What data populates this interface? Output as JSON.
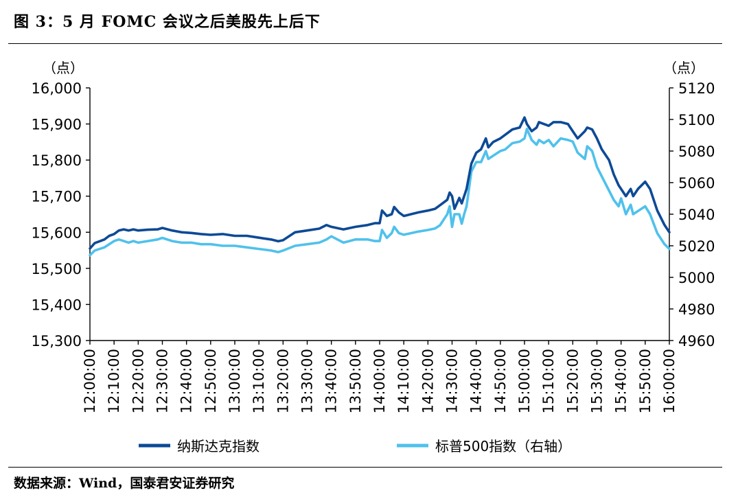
{
  "figure": {
    "title": "图 3：5 月 FOMC 会议之后美股先上后下",
    "source": "数据来源：Wind，国泰君安证券研究"
  },
  "colors": {
    "nasdaq": "#0d4a96",
    "sp500": "#4fc1ec",
    "axis": "#000000"
  },
  "chart_data": {
    "type": "line",
    "left_unit": "（点）",
    "right_unit": "（点）",
    "left_axis": {
      "min": 15300,
      "max": 16000,
      "step": 100,
      "tick_labels": [
        "15,300",
        "15,400",
        "15,500",
        "15,600",
        "15,700",
        "15,800",
        "15,900",
        "16,000"
      ]
    },
    "right_axis": {
      "min": 4960,
      "max": 5120,
      "step": 20,
      "tick_labels": [
        "4960",
        "4980",
        "5000",
        "5020",
        "5040",
        "5060",
        "5080",
        "5100",
        "5120"
      ]
    },
    "x_ticks": [
      "12:00:00",
      "12:10:00",
      "12:20:00",
      "12:30:00",
      "12:40:00",
      "12:50:00",
      "13:00:00",
      "13:10:00",
      "13:20:00",
      "13:30:00",
      "13:40:00",
      "13:50:00",
      "14:00:00",
      "14:10:00",
      "14:20:00",
      "14:30:00",
      "14:40:00",
      "14:50:00",
      "15:00:00",
      "15:10:00",
      "15:20:00",
      "15:30:00",
      "15:40:00",
      "15:50:00",
      "16:00:00"
    ],
    "grid": false,
    "legend_position": "bottom",
    "series": [
      {
        "name": "纳斯达克指数",
        "axis": "left",
        "x": [
          "12:00",
          "12:02",
          "12:04",
          "12:06",
          "12:08",
          "12:10",
          "12:12",
          "12:14",
          "12:16",
          "12:18",
          "12:20",
          "12:24",
          "12:28",
          "12:30",
          "12:34",
          "12:38",
          "12:42",
          "12:46",
          "12:50",
          "12:55",
          "13:00",
          "13:05",
          "13:10",
          "13:15",
          "13:18",
          "13:20",
          "13:25",
          "13:30",
          "13:35",
          "13:38",
          "13:40",
          "13:45",
          "13:50",
          "13:55",
          "13:58",
          "14:00",
          "14:01",
          "14:03",
          "14:05",
          "14:06",
          "14:08",
          "14:10",
          "14:13",
          "14:16",
          "14:20",
          "14:23",
          "14:25",
          "14:28",
          "14:29",
          "14:30",
          "14:31",
          "14:33",
          "14:34",
          "14:35",
          "14:36",
          "14:38",
          "14:40",
          "14:42",
          "14:44",
          "14:45",
          "14:47",
          "14:50",
          "14:52",
          "14:55",
          "14:58",
          "15:00",
          "15:01",
          "15:03",
          "15:05",
          "15:06",
          "15:08",
          "15:10",
          "15:12",
          "15:15",
          "15:18",
          "15:20",
          "15:22",
          "15:25",
          "15:26",
          "15:28",
          "15:30",
          "15:32",
          "15:35",
          "15:37",
          "15:39",
          "15:40",
          "15:42",
          "15:44",
          "15:45",
          "15:47",
          "15:50",
          "15:52",
          "15:55",
          "15:58",
          "16:00"
        ],
        "values": [
          15555,
          15570,
          15575,
          15580,
          15590,
          15595,
          15605,
          15608,
          15605,
          15608,
          15605,
          15607,
          15608,
          15612,
          15605,
          15600,
          15598,
          15595,
          15593,
          15595,
          15590,
          15590,
          15585,
          15580,
          15575,
          15578,
          15600,
          15605,
          15610,
          15620,
          15615,
          15608,
          15615,
          15620,
          15625,
          15625,
          15660,
          15645,
          15650,
          15670,
          15655,
          15645,
          15650,
          15655,
          15660,
          15665,
          15675,
          15690,
          15710,
          15700,
          15665,
          15695,
          15680,
          15700,
          15720,
          15790,
          15820,
          15830,
          15860,
          15835,
          15850,
          15860,
          15870,
          15885,
          15890,
          15918,
          15900,
          15880,
          15890,
          15905,
          15900,
          15895,
          15905,
          15905,
          15900,
          15880,
          15860,
          15880,
          15890,
          15885,
          15860,
          15830,
          15800,
          15760,
          15730,
          15720,
          15700,
          15720,
          15700,
          15720,
          15740,
          15720,
          15660,
          15620,
          15600
        ]
      },
      {
        "name": "标普500指数（右轴）",
        "axis": "right",
        "x": [
          "12:00",
          "12:02",
          "12:04",
          "12:06",
          "12:08",
          "12:10",
          "12:12",
          "12:14",
          "12:16",
          "12:18",
          "12:20",
          "12:24",
          "12:28",
          "12:30",
          "12:34",
          "12:38",
          "12:42",
          "12:46",
          "12:50",
          "12:55",
          "13:00",
          "13:05",
          "13:10",
          "13:15",
          "13:18",
          "13:20",
          "13:25",
          "13:30",
          "13:35",
          "13:38",
          "13:40",
          "13:45",
          "13:50",
          "13:55",
          "13:58",
          "14:00",
          "14:01",
          "14:03",
          "14:05",
          "14:06",
          "14:08",
          "14:10",
          "14:13",
          "14:16",
          "14:20",
          "14:23",
          "14:25",
          "14:28",
          "14:29",
          "14:30",
          "14:31",
          "14:33",
          "14:34",
          "14:35",
          "14:36",
          "14:38",
          "14:40",
          "14:42",
          "14:44",
          "14:45",
          "14:47",
          "14:50",
          "14:52",
          "14:55",
          "14:58",
          "15:00",
          "15:01",
          "15:03",
          "15:05",
          "15:06",
          "15:08",
          "15:10",
          "15:12",
          "15:15",
          "15:18",
          "15:20",
          "15:22",
          "15:25",
          "15:26",
          "15:28",
          "15:30",
          "15:32",
          "15:35",
          "15:37",
          "15:39",
          "15:40",
          "15:42",
          "15:44",
          "15:45",
          "15:47",
          "15:50",
          "15:52",
          "15:55",
          "15:58",
          "16:00"
        ],
        "values": [
          5014,
          5017,
          5018,
          5019,
          5021,
          5023,
          5024,
          5023,
          5022,
          5023,
          5022,
          5023,
          5024,
          5025,
          5023,
          5022,
          5022,
          5021,
          5021,
          5020,
          5020,
          5019,
          5018,
          5017,
          5016,
          5017,
          5020,
          5021,
          5022,
          5024,
          5026,
          5022,
          5024,
          5024,
          5023,
          5023,
          5030,
          5025,
          5028,
          5032,
          5028,
          5027,
          5028,
          5029,
          5030,
          5031,
          5033,
          5040,
          5045,
          5032,
          5040,
          5040,
          5034,
          5040,
          5045,
          5067,
          5073,
          5073,
          5080,
          5075,
          5077,
          5080,
          5081,
          5085,
          5086,
          5088,
          5094,
          5087,
          5084,
          5087,
          5085,
          5087,
          5083,
          5088,
          5087,
          5086,
          5079,
          5075,
          5083,
          5080,
          5070,
          5064,
          5055,
          5049,
          5045,
          5050,
          5040,
          5046,
          5040,
          5042,
          5045,
          5040,
          5028,
          5021,
          5018
        ]
      }
    ]
  }
}
